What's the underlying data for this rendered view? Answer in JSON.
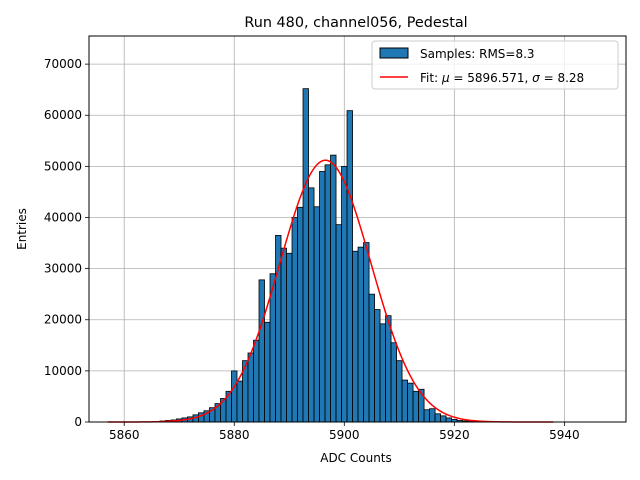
{
  "chart_data": {
    "type": "bar",
    "title": "Run 480, channel056, Pedestal",
    "xlabel": "ADC Counts",
    "ylabel": "Entries",
    "xlim": [
      5853.6,
      5951.2
    ],
    "ylim": [
      0,
      75500
    ],
    "xticks": [
      5860,
      5880,
      5900,
      5920,
      5940
    ],
    "yticks": [
      0,
      10000,
      20000,
      30000,
      40000,
      50000,
      60000,
      70000
    ],
    "grid": true,
    "legend_position": "top-right",
    "bar_color": "#1f77b4",
    "bar_edge_color": "#000000",
    "fit_color": "#ff0000",
    "bin_width": 1,
    "series": [
      {
        "name": "Samples: RMS=8.3",
        "kind": "histogram",
        "x": [
          5866,
          5867,
          5868,
          5869,
          5870,
          5871,
          5872,
          5873,
          5874,
          5875,
          5876,
          5877,
          5878,
          5879,
          5880,
          5881,
          5882,
          5883,
          5884,
          5885,
          5886,
          5887,
          5888,
          5889,
          5890,
          5891,
          5892,
          5893,
          5894,
          5895,
          5896,
          5897,
          5898,
          5899,
          5900,
          5901,
          5902,
          5903,
          5904,
          5905,
          5906,
          5907,
          5908,
          5909,
          5910,
          5911,
          5912,
          5913,
          5914,
          5915,
          5916,
          5917,
          5918,
          5919,
          5920,
          5921,
          5922,
          5923,
          5924,
          5925,
          5926
        ],
        "values": [
          100,
          200,
          300,
          400,
          600,
          800,
          1000,
          1400,
          1800,
          2200,
          2800,
          3600,
          4600,
          6000,
          10000,
          8000,
          12000,
          13500,
          16000,
          27800,
          19500,
          29000,
          36500,
          34000,
          33000,
          40000,
          42000,
          65200,
          45800,
          42100,
          49000,
          50300,
          52200,
          38600,
          50000,
          60900,
          33400,
          34200,
          35100,
          25000,
          22000,
          19200,
          20800,
          15500,
          12000,
          8200,
          7600,
          6000,
          6400,
          2400,
          2600,
          1600,
          1200,
          800,
          500,
          300,
          200,
          100,
          80,
          50,
          30
        ]
      },
      {
        "name": "Fit: μ = 5896.571, σ = 8.28",
        "kind": "gaussian-fit",
        "amplitude": 51200,
        "mu": 5896.571,
        "sigma": 8.28,
        "x_range": [
          5857,
          5938
        ]
      }
    ],
    "legend": {
      "label_prefix": "Fit: ",
      "mu_symbol": "μ",
      "mu_text": " = 5896.571, ",
      "sigma_symbol": "σ",
      "sigma_text": " = 8.28"
    }
  }
}
